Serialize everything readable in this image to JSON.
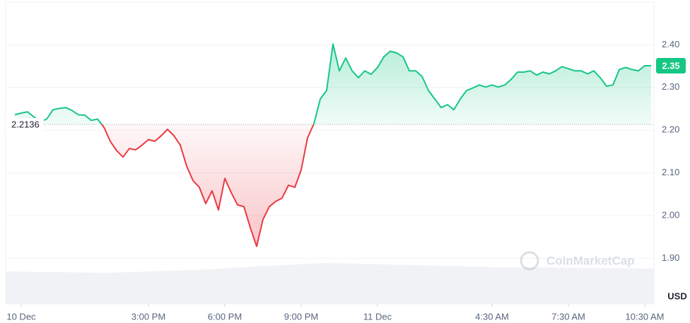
{
  "chart_data": {
    "type": "line",
    "x": [
      9.75,
      10,
      10.25,
      10.5,
      10.75,
      11,
      11.25,
      11.5,
      11.75,
      12,
      12.25,
      12.5,
      12.75,
      13,
      13.25,
      13.5,
      13.75,
      14,
      14.25,
      14.5,
      14.75,
      15,
      15.25,
      15.5,
      15.75,
      16,
      16.25,
      16.5,
      16.75,
      17,
      17.25,
      17.5,
      17.75,
      18,
      18.25,
      18.5,
      18.75,
      19,
      19.25,
      19.5,
      19.75,
      20,
      20.25,
      20.5,
      20.75,
      21,
      21.25,
      21.5,
      21.75,
      22,
      22.25,
      22.5,
      22.75,
      23,
      23.25,
      23.5,
      23.75,
      24,
      24.25,
      24.5,
      24.75,
      25,
      25.25,
      25.5,
      25.75,
      26,
      26.25,
      26.5,
      26.75,
      27,
      27.25,
      27.5,
      27.75,
      28,
      28.25,
      28.5,
      28.75,
      29,
      29.25,
      29.5,
      29.75,
      30,
      30.25,
      30.5,
      30.75,
      31,
      31.25,
      31.5,
      31.75,
      32,
      32.25,
      32.5,
      32.75,
      33,
      33.25,
      33.5,
      33.75,
      34,
      34.25,
      34.5,
      34.75
    ],
    "values": [
      2.236,
      2.24,
      2.243,
      2.231,
      2.22,
      2.226,
      2.248,
      2.251,
      2.253,
      2.246,
      2.236,
      2.235,
      2.223,
      2.226,
      2.207,
      2.174,
      2.152,
      2.137,
      2.157,
      2.154,
      2.165,
      2.178,
      2.174,
      2.187,
      2.202,
      2.187,
      2.165,
      2.116,
      2.082,
      2.066,
      2.028,
      2.058,
      2.013,
      2.087,
      2.054,
      2.025,
      2.021,
      1.972,
      1.928,
      1.991,
      2.021,
      2.033,
      2.041,
      2.071,
      2.066,
      2.107,
      2.182,
      2.215,
      2.273,
      2.293,
      2.402,
      2.339,
      2.369,
      2.339,
      2.323,
      2.339,
      2.331,
      2.347,
      2.372,
      2.385,
      2.381,
      2.372,
      2.339,
      2.339,
      2.326,
      2.293,
      2.273,
      2.253,
      2.26,
      2.248,
      2.273,
      2.293,
      2.299,
      2.306,
      2.301,
      2.306,
      2.301,
      2.306,
      2.319,
      2.336,
      2.336,
      2.339,
      2.329,
      2.336,
      2.332,
      2.339,
      2.349,
      2.344,
      2.339,
      2.339,
      2.332,
      2.339,
      2.323,
      2.303,
      2.306,
      2.342,
      2.347,
      2.342,
      2.339,
      2.351,
      2.351
    ],
    "baseline": 2.2136,
    "up_color": "#16c784",
    "down_color": "#ea3943",
    "price_label": "2.35",
    "ylim": [
      1.793,
      2.5
    ],
    "yticks": [
      {
        "value": 1.9,
        "label": "1.90"
      },
      {
        "value": 2.0,
        "label": "2.00"
      },
      {
        "value": 2.1,
        "label": "2.10"
      },
      {
        "value": 2.2,
        "label": "2.20"
      },
      {
        "value": 2.3,
        "label": "2.30"
      },
      {
        "value": 2.4,
        "label": "2.40"
      }
    ],
    "xlim": [
      9.39,
      34.86
    ],
    "xticks": [
      {
        "value": 10,
        "label": "10 Dec"
      },
      {
        "value": 15,
        "label": "3:00 PM"
      },
      {
        "value": 18,
        "label": "6:00 PM"
      },
      {
        "value": 21,
        "label": "9:00 PM"
      },
      {
        "value": 24,
        "label": "11 Dec"
      },
      {
        "value": 28.5,
        "label": "4:30 AM"
      },
      {
        "value": 31.5,
        "label": "7:30 AM"
      },
      {
        "value": 34.5,
        "label": "10:30 AM"
      }
    ],
    "y_axis_label": "USD",
    "watermark": "CoinMarketCap",
    "grid": true
  }
}
